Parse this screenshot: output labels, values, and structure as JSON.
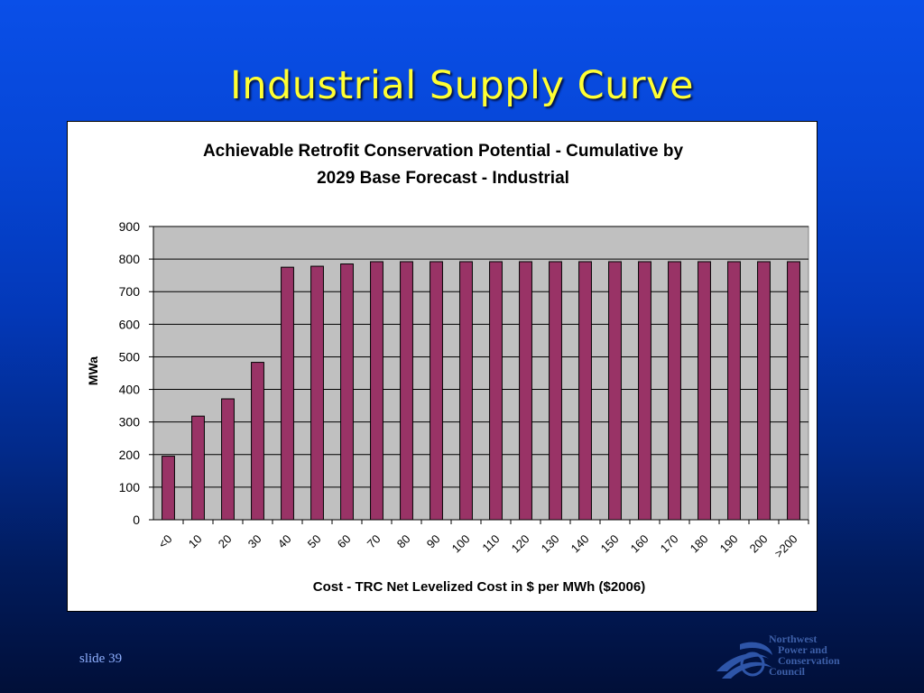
{
  "slide": {
    "title": "Industrial Supply Curve",
    "number_label": "slide 39"
  },
  "logo": {
    "line1": "Northwest",
    "line2": "Power and",
    "line3": "Conservation",
    "line4": "Council"
  },
  "colors": {
    "bar_fill": "#993366",
    "plot_background": "#c0c0c0",
    "title_color": "#ffff33"
  },
  "chart_data": {
    "type": "bar",
    "title_line1": "Achievable Retrofit Conservation Potential - Cumulative by",
    "title_line2": "2029 Base Forecast - Industrial",
    "xlabel": "Cost - TRC Net Levelized Cost in $ per MWh ($2006)",
    "ylabel": "MWa",
    "ylim": [
      0,
      900
    ],
    "yticks": [
      0,
      100,
      200,
      300,
      400,
      500,
      600,
      700,
      800,
      900
    ],
    "grid": true,
    "legend": "none",
    "categories": [
      "<0",
      "10",
      "20",
      "30",
      "40",
      "50",
      "60",
      "70",
      "80",
      "90",
      "100",
      "110",
      "120",
      "130",
      "140",
      "150",
      "160",
      "170",
      "180",
      "190",
      "200",
      ">200"
    ],
    "values": [
      195,
      318,
      371,
      483,
      775,
      778,
      785,
      792,
      792,
      792,
      792,
      792,
      792,
      792,
      792,
      792,
      792,
      792,
      792,
      792,
      792,
      792
    ]
  }
}
